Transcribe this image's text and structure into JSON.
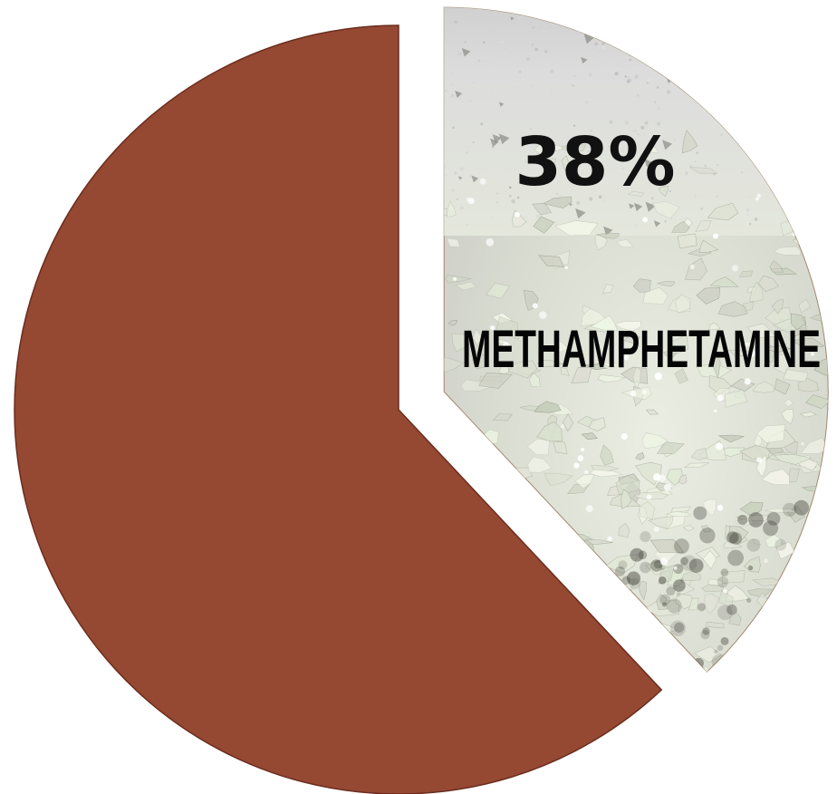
{
  "chart_data": {
    "type": "pie",
    "title": "",
    "slices": [
      {
        "name": "METHAMPHETAMINE",
        "value": 38,
        "label": "38%",
        "color": "#d9d9d4",
        "texture": "crystal-photo",
        "exploded": true
      },
      {
        "name": "",
        "value": 62,
        "label": "",
        "color": "#954832",
        "exploded": false
      }
    ],
    "start_angle": "12 o'clock",
    "direction": "clockwise",
    "legend": "none"
  },
  "colors": {
    "main_slice": "#954832",
    "main_slice_stroke": "#6b2d1e",
    "texture_base": "#d9d9d4",
    "texture_dark": "#2e2e26",
    "label_text": "#111111"
  }
}
